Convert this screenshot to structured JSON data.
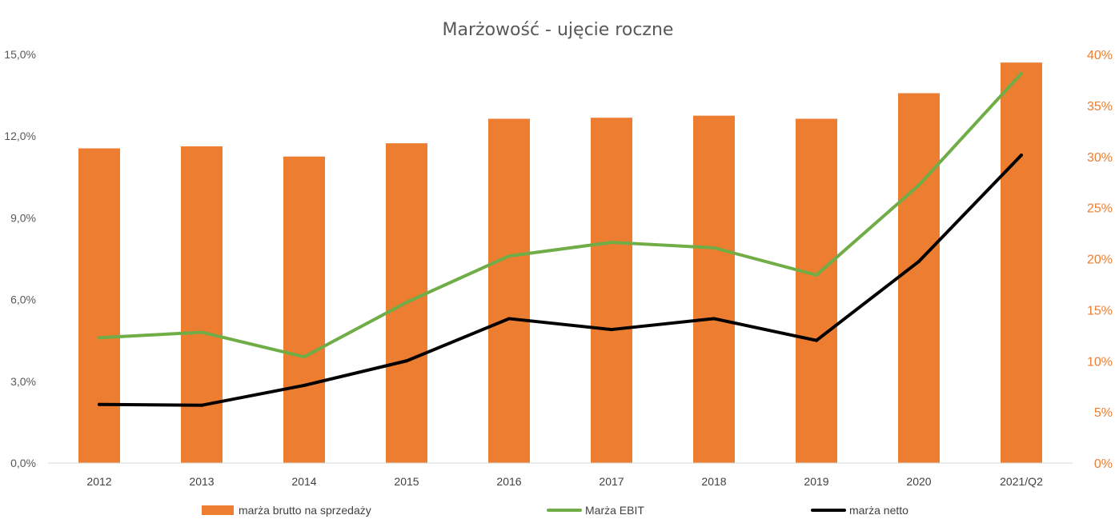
{
  "chart_data": {
    "type": "bar",
    "title": "Marżowość - ujęcie roczne",
    "categories": [
      "2012",
      "2013",
      "2014",
      "2015",
      "2016",
      "2017",
      "2018",
      "2019",
      "2020",
      "2021/Q2"
    ],
    "y_left": {
      "ticks": [
        "0,0%",
        "3,0%",
        "6,0%",
        "9,0%",
        "12,0%",
        "15,0%"
      ],
      "range": [
        0,
        15
      ]
    },
    "y_right": {
      "ticks": [
        "0%",
        "5%",
        "10%",
        "15%",
        "20%",
        "25%",
        "30%",
        "35%",
        "40%"
      ],
      "range": [
        0,
        40
      ]
    },
    "series": [
      {
        "name": "marża brutto na sprzedaży",
        "type": "bar",
        "axis": "right",
        "color": "#ed7d31",
        "values": [
          30.8,
          31.0,
          30.0,
          31.3,
          33.7,
          33.8,
          34.0,
          33.7,
          36.2,
          39.2
        ]
      },
      {
        "name": "Marża EBIT",
        "type": "line",
        "axis": "left",
        "color": "#70ad47",
        "values": [
          4.6,
          4.8,
          3.9,
          5.9,
          7.6,
          8.1,
          7.9,
          6.9,
          10.2,
          14.3
        ]
      },
      {
        "name": "marża netto",
        "type": "line",
        "axis": "left",
        "color": "#000000",
        "values": [
          2.15,
          2.12,
          2.85,
          3.75,
          5.3,
          4.9,
          5.3,
          4.5,
          7.4,
          11.3
        ]
      }
    ],
    "grid": false,
    "legend_position": "bottom"
  }
}
